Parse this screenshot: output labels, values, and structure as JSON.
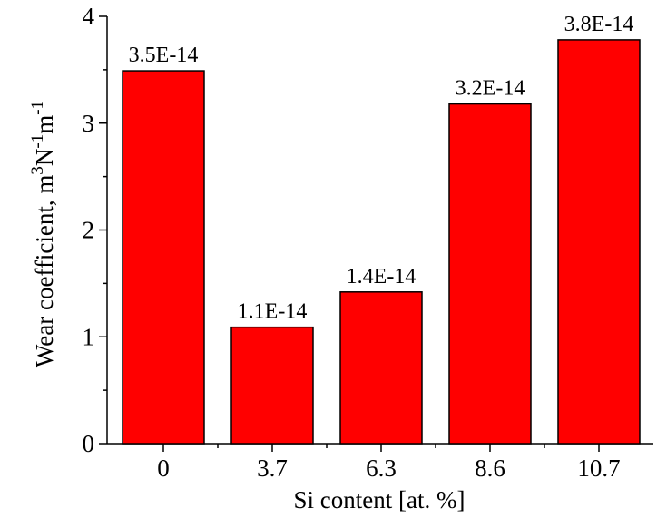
{
  "chart_data": {
    "type": "bar",
    "categories": [
      "0",
      "3.7",
      "6.3",
      "8.6",
      "10.7"
    ],
    "values": [
      3.49,
      1.09,
      1.42,
      3.18,
      3.78
    ],
    "data_labels": [
      "3.5E-14",
      "1.1E-14",
      "1.4E-14",
      "3.2E-14",
      "3.8E-14"
    ],
    "xlabel": "Si content [at. %]",
    "ylabel": {
      "base": "Wear coefficient, m",
      "sup1": "3",
      "mid1": "N",
      "sup2": "-1",
      "mid2": "m",
      "sup3": "-1"
    },
    "ylim": [
      0,
      4
    ],
    "yticks": [
      "0",
      "1",
      "2",
      "3",
      "4"
    ],
    "bar_color": "#ff0000",
    "bar_edge_color": "#000000",
    "grid": false,
    "legend": "none"
  }
}
